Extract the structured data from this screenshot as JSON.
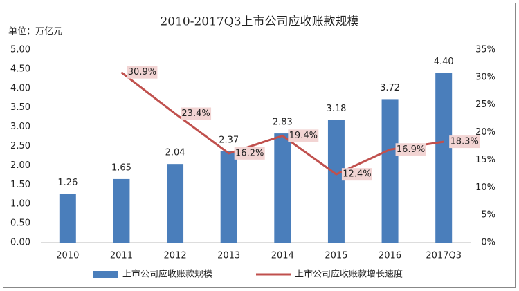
{
  "chart_data": {
    "type": "bar",
    "title": "2010-2017Q3上市公司应收账款规模",
    "y_label": "单位：万亿元",
    "categories": [
      "2010",
      "2011",
      "2012",
      "2013",
      "2014",
      "2015",
      "2016",
      "2017Q3"
    ],
    "series": [
      {
        "name": "上市公司应收账款规模",
        "type": "bar",
        "color": "#4a7ebb",
        "values": [
          1.26,
          1.65,
          2.04,
          2.37,
          2.83,
          3.18,
          3.72,
          4.4
        ],
        "value_labels": [
          "1.26",
          "1.65",
          "2.04",
          "2.37",
          "2.83",
          "3.18",
          "3.72",
          "4.40"
        ]
      },
      {
        "name": "上市公司应收账款增长速度",
        "type": "line",
        "color": "#c0504d",
        "axis": "y2",
        "values": [
          null,
          30.9,
          23.4,
          16.2,
          19.4,
          12.4,
          16.9,
          18.3
        ],
        "value_labels": [
          null,
          "30.9%",
          "23.4%",
          "16.2%",
          "19.4%",
          "12.4%",
          "16.9%",
          "18.3%"
        ]
      }
    ],
    "ylim": [
      0,
      5
    ],
    "yticks": [
      {
        "value": 0,
        "label": "0.00"
      },
      {
        "value": 0.5,
        "label": "0.50"
      },
      {
        "value": 1,
        "label": "1.00"
      },
      {
        "value": 1.5,
        "label": "1.50"
      },
      {
        "value": 2,
        "label": "2.00"
      },
      {
        "value": 2.5,
        "label": "2.50"
      },
      {
        "value": 3,
        "label": "3.00"
      },
      {
        "value": 3.5,
        "label": "3.50"
      },
      {
        "value": 4,
        "label": "4.00"
      },
      {
        "value": 4.5,
        "label": "4.50"
      },
      {
        "value": 5,
        "label": "5.00"
      }
    ],
    "y2lim": [
      0,
      35
    ],
    "y2ticks": [
      {
        "value": 0,
        "label": "0%"
      },
      {
        "value": 5,
        "label": "5%"
      },
      {
        "value": 10,
        "label": "10%"
      },
      {
        "value": 15,
        "label": "15%"
      },
      {
        "value": 20,
        "label": "20%"
      },
      {
        "value": 25,
        "label": "25%"
      },
      {
        "value": 30,
        "label": "30%"
      },
      {
        "value": 35,
        "label": "35%"
      }
    ],
    "grid": false
  }
}
